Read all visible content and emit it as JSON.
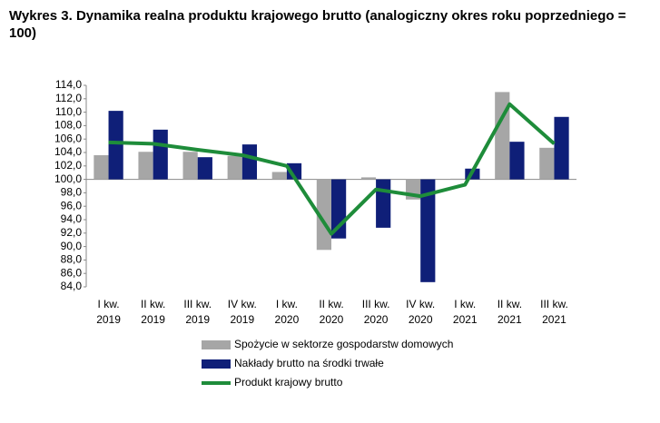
{
  "chart_data": {
    "type": "bar_line",
    "title": "Wykres 3. Dynamika realna  produktu krajowego brutto (analogiczny okres roku poprzedniego = 100)",
    "categories": [
      "I kw. 2019",
      "II kw. 2019",
      "III kw. 2019",
      "IV kw. 2019",
      "I kw. 2020",
      "II kw. 2020",
      "III kw. 2020",
      "IV kw. 2020",
      "I kw. 2021",
      "II kw. 2021",
      "III kw. 2021"
    ],
    "series": [
      {
        "name": "Spożycie w sektorze gospodarstw domowych",
        "type": "bar",
        "color": "#a6a6a6",
        "values": [
          103.6,
          104.1,
          104.1,
          103.5,
          101.1,
          89.5,
          100.3,
          97.0,
          100.1,
          113.0,
          104.7
        ]
      },
      {
        "name": "Nakłady brutto na środki trwałe",
        "type": "bar",
        "color": "#0f1f78",
        "values": [
          110.2,
          107.4,
          103.3,
          105.2,
          102.4,
          91.2,
          92.8,
          84.7,
          101.6,
          105.6,
          109.3
        ]
      },
      {
        "name": "Produkt krajowy brutto",
        "type": "line",
        "color": "#1e8c3a",
        "values": [
          105.5,
          105.3,
          104.4,
          103.6,
          102.0,
          91.9,
          98.5,
          97.5,
          99.2,
          111.2,
          105.3
        ]
      }
    ],
    "bar_base": 100,
    "ylim": [
      84,
      114
    ],
    "yticks": [
      {
        "value": 84,
        "label": "84,0"
      },
      {
        "value": 86,
        "label": "86,0"
      },
      {
        "value": 88,
        "label": "88,0"
      },
      {
        "value": 90,
        "label": "90,0"
      },
      {
        "value": 92,
        "label": "92,0"
      },
      {
        "value": 94,
        "label": "94,0"
      },
      {
        "value": 96,
        "label": "96,0"
      },
      {
        "value": 98,
        "label": "98,0"
      },
      {
        "value": 100,
        "label": "100,0"
      },
      {
        "value": 102,
        "label": "102,0"
      },
      {
        "value": 104,
        "label": "104,0"
      },
      {
        "value": 106,
        "label": "106,0"
      },
      {
        "value": 108,
        "label": "108,0"
      },
      {
        "value": 110,
        "label": "110,0"
      },
      {
        "value": 112,
        "label": "112,0"
      },
      {
        "value": 114,
        "label": "114,0"
      }
    ],
    "grid": false
  }
}
